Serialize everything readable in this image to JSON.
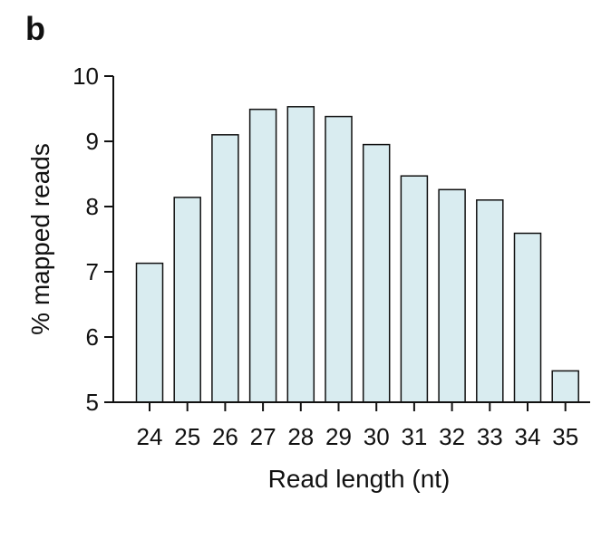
{
  "panel_label": "b",
  "chart_data": {
    "type": "bar",
    "categories": [
      "24",
      "25",
      "26",
      "27",
      "28",
      "29",
      "30",
      "31",
      "32",
      "33",
      "34",
      "35"
    ],
    "values": [
      7.13,
      8.14,
      9.1,
      9.49,
      9.53,
      9.38,
      8.95,
      8.47,
      8.26,
      8.1,
      7.59,
      5.48
    ],
    "xlabel": "Read length (nt)",
    "ylabel": "% mapped reads",
    "ylim": [
      5,
      10
    ],
    "yticks": [
      5,
      6,
      7,
      8,
      9,
      10
    ],
    "grid": false,
    "bar_color": "#d9ecf0",
    "bar_edge_color": "#111111"
  }
}
